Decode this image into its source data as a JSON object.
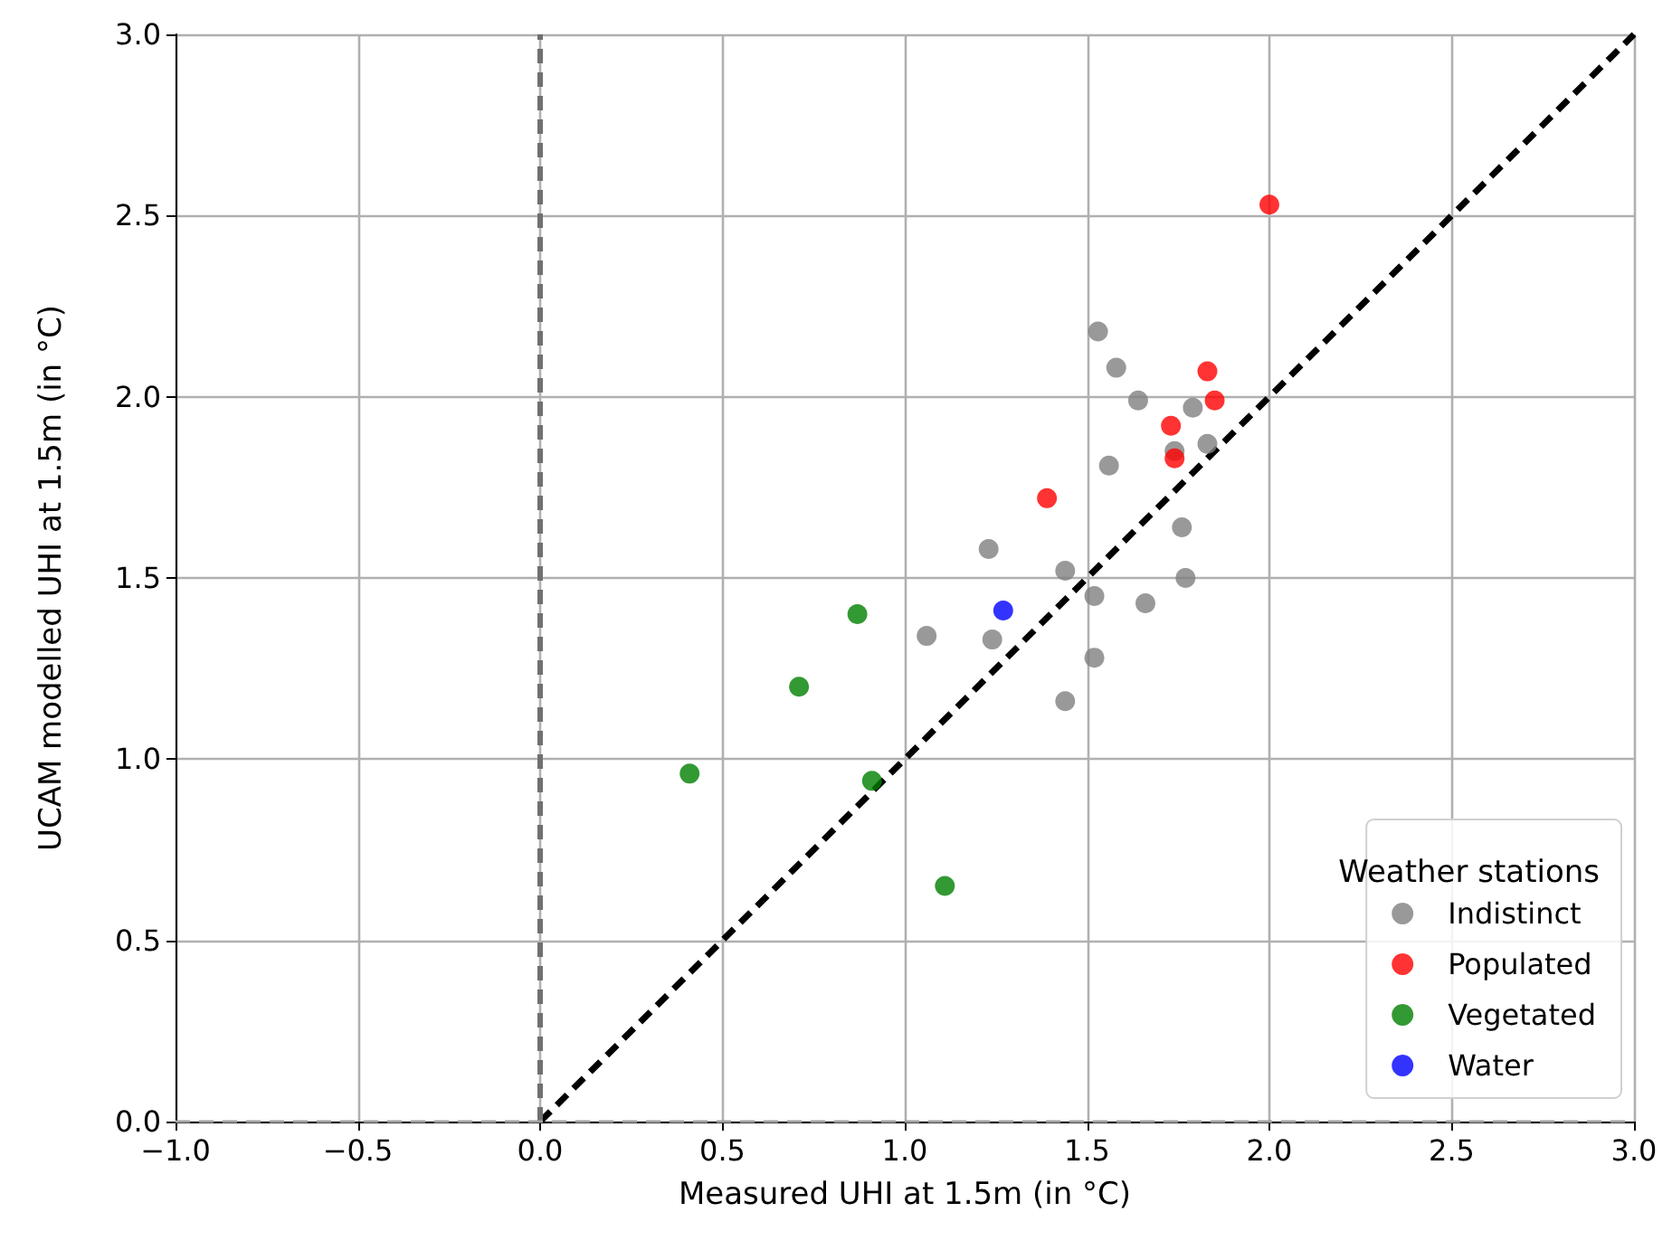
{
  "chart_data": {
    "type": "scatter",
    "xlabel": "Measured UHI at 1.5m (in °C)",
    "ylabel": "UCAM modelled UHI at 1.5m (in °C)",
    "legend_title": "Weather stations",
    "legend": "bottom right",
    "grid": true,
    "marker": "circle",
    "xlim": [
      -1,
      3
    ],
    "ylim": [
      0,
      3
    ],
    "xticks": [
      {
        "value": -1,
        "label": "−1.0"
      },
      {
        "value": -0.5,
        "label": "−0.5"
      },
      {
        "value": 0,
        "label": "0.0"
      },
      {
        "value": 0.5,
        "label": "0.5"
      },
      {
        "value": 1,
        "label": "1.0"
      },
      {
        "value": 1.5,
        "label": "1.5"
      },
      {
        "value": 2,
        "label": "2.0"
      },
      {
        "value": 2.5,
        "label": "2.5"
      },
      {
        "value": 3,
        "label": "3.0"
      }
    ],
    "yticks": [
      {
        "value": 0,
        "label": "0.0"
      },
      {
        "value": 0.5,
        "label": "0.5"
      },
      {
        "value": 1,
        "label": "1.0"
      },
      {
        "value": 1.5,
        "label": "1.5"
      },
      {
        "value": 2,
        "label": "2.0"
      },
      {
        "value": 2.5,
        "label": "2.5"
      },
      {
        "value": 3,
        "label": "3.0"
      }
    ],
    "ref_lines": [
      {
        "axis": "x",
        "value": 0,
        "color": "#707070",
        "line_style": "dashed"
      },
      {
        "axis": "y",
        "value": 0,
        "color": "#a0a0a0",
        "line_style": "dashed"
      }
    ],
    "series": [
      {
        "name": "Indistinct",
        "color": "#808080",
        "x": [
          1.53,
          1.58,
          1.64,
          1.79,
          1.83,
          1.74,
          1.56,
          1.76,
          1.77,
          1.23,
          1.44,
          1.52,
          1.66,
          1.06,
          1.24,
          1.52,
          1.44
        ],
        "values": [
          2.18,
          2.08,
          1.99,
          1.97,
          1.87,
          1.85,
          1.81,
          1.64,
          1.5,
          1.58,
          1.52,
          1.45,
          1.43,
          1.34,
          1.33,
          1.28,
          1.16
        ]
      },
      {
        "name": "Populated",
        "color": "#ff0000",
        "x": [
          1.83,
          1.85,
          1.73,
          1.74,
          1.39,
          2.0
        ],
        "values": [
          2.07,
          1.99,
          1.92,
          1.83,
          1.72,
          2.53
        ]
      },
      {
        "name": "Vegetated",
        "color": "#008000",
        "x": [
          0.87,
          0.71,
          0.41,
          0.91,
          1.11
        ],
        "values": [
          1.4,
          1.2,
          0.96,
          0.94,
          0.65
        ]
      },
      {
        "name": "Water",
        "color": "#0000ff",
        "x": [
          1.27
        ],
        "values": [
          1.41
        ]
      },
      {
        "type": "line",
        "color": "#000000",
        "line_style": "dashed",
        "marker": "none",
        "x": [
          0,
          3
        ],
        "values": [
          0,
          3
        ]
      }
    ]
  }
}
